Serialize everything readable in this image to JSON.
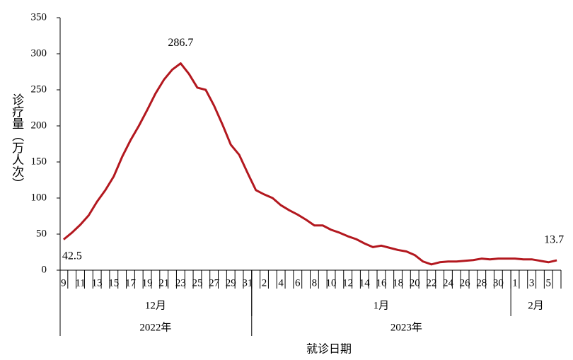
{
  "chart_data": {
    "type": "line",
    "y_label": "诊疗量（万人次）",
    "x_label": "就诊日期",
    "x": [
      "2022-12-09",
      "2022-12-10",
      "2022-12-11",
      "2022-12-12",
      "2022-12-13",
      "2022-12-14",
      "2022-12-15",
      "2022-12-16",
      "2022-12-17",
      "2022-12-18",
      "2022-12-19",
      "2022-12-20",
      "2022-12-21",
      "2022-12-22",
      "2022-12-23",
      "2022-12-24",
      "2022-12-25",
      "2022-12-26",
      "2022-12-27",
      "2022-12-28",
      "2022-12-29",
      "2022-12-30",
      "2022-12-31",
      "2023-01-01",
      "2023-01-02",
      "2023-01-03",
      "2023-01-04",
      "2023-01-05",
      "2023-01-06",
      "2023-01-07",
      "2023-01-08",
      "2023-01-09",
      "2023-01-10",
      "2023-01-11",
      "2023-01-12",
      "2023-01-13",
      "2023-01-14",
      "2023-01-15",
      "2023-01-16",
      "2023-01-17",
      "2023-01-18",
      "2023-01-19",
      "2023-01-20",
      "2023-01-21",
      "2023-01-22",
      "2023-01-23",
      "2023-01-24",
      "2023-01-25",
      "2023-01-26",
      "2023-01-27",
      "2023-01-28",
      "2023-01-29",
      "2023-01-30",
      "2023-01-31",
      "2023-02-01",
      "2023-02-02",
      "2023-02-03",
      "2023-02-04",
      "2023-02-05",
      "2023-02-06"
    ],
    "series": [
      {
        "color": "#b3181f",
        "values": [
          42.5,
          52,
          63,
          76,
          95,
          111,
          130,
          157,
          180,
          200,
          222,
          245,
          264,
          278,
          286.7,
          272,
          253,
          250,
          228,
          202,
          174,
          160,
          135,
          111,
          105,
          100,
          90,
          83,
          77,
          70,
          62,
          62,
          56,
          52,
          47,
          43,
          37,
          32,
          34,
          31,
          28,
          26,
          21,
          12,
          8,
          11,
          12,
          12,
          13,
          14,
          16,
          15,
          16,
          16,
          16,
          15,
          15,
          13,
          11,
          13.7
        ],
        "value_labels": [
          "42.5",
          null,
          null,
          null,
          null,
          null,
          null,
          null,
          null,
          null,
          null,
          null,
          null,
          null,
          "286.7",
          null,
          null,
          null,
          null,
          null,
          null,
          null,
          null,
          null,
          null,
          null,
          null,
          null,
          null,
          null,
          null,
          null,
          null,
          null,
          null,
          null,
          null,
          null,
          null,
          null,
          null,
          null,
          null,
          null,
          null,
          null,
          null,
          null,
          null,
          null,
          null,
          null,
          null,
          null,
          null,
          null,
          null,
          null,
          null,
          "13.7"
        ]
      }
    ],
    "xticks": [
      {
        "value": "2022-12-09",
        "label": "9"
      },
      {
        "value": "2022-12-11",
        "label": "11"
      },
      {
        "value": "2022-12-13",
        "label": "13"
      },
      {
        "value": "2022-12-15",
        "label": "15"
      },
      {
        "value": "2022-12-17",
        "label": "17"
      },
      {
        "value": "2022-12-19",
        "label": "19"
      },
      {
        "value": "2022-12-21",
        "label": "21"
      },
      {
        "value": "2022-12-23",
        "label": "23"
      },
      {
        "value": "2022-12-25",
        "label": "25"
      },
      {
        "value": "2022-12-27",
        "label": "27"
      },
      {
        "value": "2022-12-29",
        "label": "29"
      },
      {
        "value": "2022-12-31",
        "label": "31"
      },
      {
        "value": "2023-01-02",
        "label": "2"
      },
      {
        "value": "2023-01-04",
        "label": "4"
      },
      {
        "value": "2023-01-06",
        "label": "6"
      },
      {
        "value": "2023-01-08",
        "label": "8"
      },
      {
        "value": "2023-01-10",
        "label": "10"
      },
      {
        "value": "2023-01-12",
        "label": "12"
      },
      {
        "value": "2023-01-14",
        "label": "14"
      },
      {
        "value": "2023-01-16",
        "label": "16"
      },
      {
        "value": "2023-01-18",
        "label": "18"
      },
      {
        "value": "2023-01-20",
        "label": "20"
      },
      {
        "value": "2023-01-22",
        "label": "22"
      },
      {
        "value": "2023-01-24",
        "label": "24"
      },
      {
        "value": "2023-01-26",
        "label": "26"
      },
      {
        "value": "2023-01-28",
        "label": "28"
      },
      {
        "value": "2023-01-30",
        "label": "30"
      },
      {
        "value": "2023-02-01",
        "label": "1"
      },
      {
        "value": "2023-02-03",
        "label": "3"
      },
      {
        "value": "2023-02-05",
        "label": "5"
      }
    ],
    "months": [
      {
        "value": "2022-12",
        "label": "12月"
      },
      {
        "value": "2023-01",
        "label": "1月"
      },
      {
        "value": "2023-02",
        "label": "2月"
      }
    ],
    "years": [
      {
        "value": "2022",
        "label": "2022年"
      },
      {
        "value": "2023",
        "label": "2023年"
      }
    ],
    "ylim": [
      0,
      350
    ],
    "yticks": [
      0,
      50,
      100,
      150,
      200,
      250,
      300,
      350
    ],
    "grid": false
  }
}
